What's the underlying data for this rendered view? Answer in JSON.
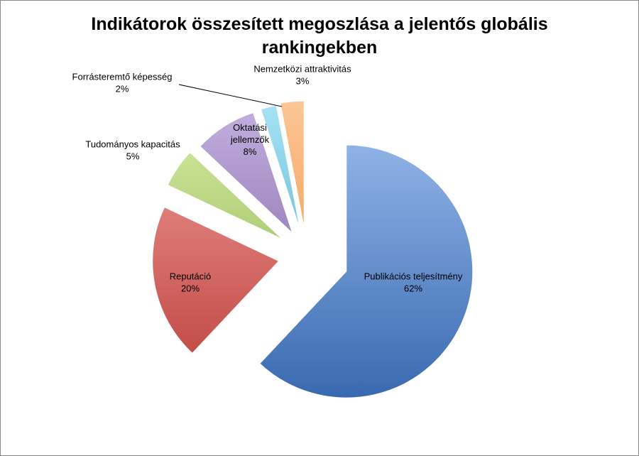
{
  "chart_data": {
    "type": "pie",
    "title_line1": "Indikátorok összesített megoszlása a jelentős globális",
    "title_line2": "rankingekben",
    "exploded": true,
    "slices": [
      {
        "name": "Publikációs teljesítmény",
        "value": 62,
        "label": "62%",
        "color": "#4f81bd",
        "light": "#9fbff0",
        "dark": "#3466ad"
      },
      {
        "name": "Reputáció",
        "value": 20,
        "label": "20%",
        "color": "#c0504d",
        "light": "#f4a09c",
        "dark": "#b73a36"
      },
      {
        "name": "Tudományos kapacitás",
        "value": 5,
        "label": "5%",
        "color": "#9bbb59",
        "light": "#d8efa8",
        "dark": "#7ea33a"
      },
      {
        "name": "Oktatási jellemzők",
        "name_lines": [
          "Oktatási",
          "jellemzők"
        ],
        "value": 8,
        "label": "8%",
        "color": "#8064a2",
        "light": "#c4b1e0",
        "dark": "#6a4e92"
      },
      {
        "name": "Forrásteremtő képesség",
        "value": 2,
        "label": "2%",
        "color": "#4bacc6",
        "light": "#a8e3f5",
        "dark": "#2e9ac0"
      },
      {
        "name": "Nemzetközi attraktivitás",
        "value": 3,
        "label": "3%",
        "color": "#f79646",
        "light": "#fbc795",
        "dark": "#f07e28"
      }
    ]
  }
}
